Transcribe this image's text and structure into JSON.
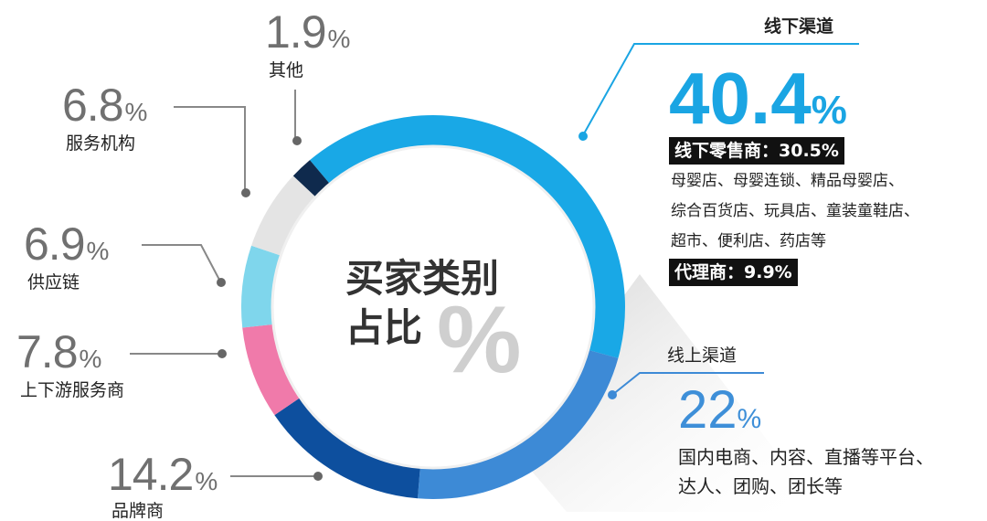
{
  "chart_data": {
    "type": "pie",
    "title": "买家类别占比",
    "title_line1": "买家类别",
    "title_line2": "占比",
    "title_symbol": "%",
    "segments": [
      {
        "name": "线下渠道",
        "value": 40.4,
        "color": "#19a8e6"
      },
      {
        "name": "线上渠道",
        "value": 22,
        "color": "#3d8ad6"
      },
      {
        "name": "品牌商",
        "value": 14.2,
        "color": "#0d4f9e"
      },
      {
        "name": "上下游服务商",
        "value": 7.8,
        "color": "#f07aaa"
      },
      {
        "name": "供应链",
        "value": 6.9,
        "color": "#7fd6ec"
      },
      {
        "name": "服务机构",
        "value": 6.8,
        "color": "#e4e4e4"
      },
      {
        "name": "其他",
        "value": 1.9,
        "color": "#0f2a4d"
      }
    ]
  },
  "labels": {
    "other": {
      "value": "1.9",
      "sign": "%",
      "name": "其他"
    },
    "service": {
      "value": "6.8",
      "sign": "%",
      "name": "服务机构"
    },
    "supply": {
      "value": "6.9",
      "sign": "%",
      "name": "供应链"
    },
    "updown": {
      "value": "7.8",
      "sign": "%",
      "name": "上下游服务商"
    },
    "brand": {
      "value": "14.2",
      "sign": "%",
      "name": "品牌商"
    }
  },
  "offline": {
    "title": "线下渠道",
    "value": "40.4",
    "sign": "%",
    "retail": "线下零售商：30.5%",
    "retail_detail": [
      "母婴店、母婴连锁、精品母婴店、",
      "综合百货店、玩具店、童装童鞋店、",
      "超市、便利店、药店等"
    ],
    "agent": "代理商：9.9%"
  },
  "online": {
    "title": "线上渠道",
    "value": "22",
    "sign": "%",
    "detail": [
      "国内电商、内容、直播等平台、",
      "达人、团购、团长等"
    ]
  }
}
